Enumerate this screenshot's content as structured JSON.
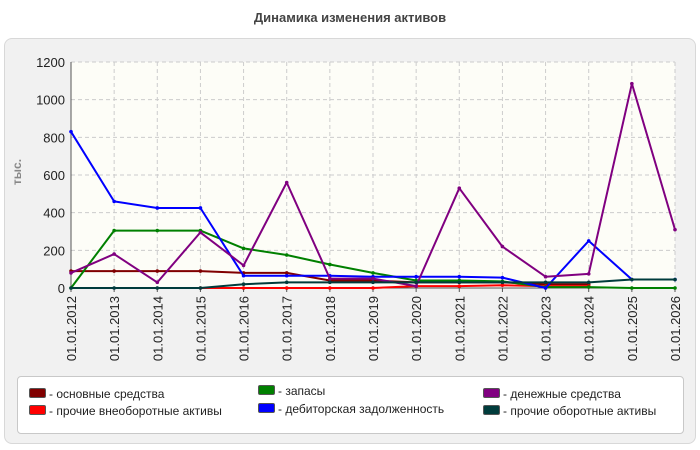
{
  "chart_data": {
    "type": "line",
    "title": "Динамика изменения активов",
    "ylabel": "тыс.",
    "xlabel": "",
    "ylim": [
      0,
      1200
    ],
    "yticks": [
      0,
      200,
      400,
      600,
      800,
      1000,
      1200
    ],
    "grid": true,
    "legend_position": "bottom",
    "categories": [
      "01.01.2012",
      "01.01.2013",
      "01.01.2014",
      "01.01.2015",
      "01.01.2016",
      "01.01.2017",
      "01.01.2018",
      "01.01.2019",
      "01.01.2020",
      "01.01.2021",
      "01.01.2022",
      "01.01.2023",
      "01.01.2024",
      "01.01.2025",
      "01.01.2026"
    ],
    "series": [
      {
        "name": "основные средства",
        "color": "#800000",
        "values": [
          90,
          90,
          90,
          90,
          80,
          80,
          40,
          40,
          30,
          30,
          30,
          20,
          20,
          null,
          null
        ]
      },
      {
        "name": "прочие внеоборотные активы",
        "color": "#ff0000",
        "values": [
          null,
          null,
          null,
          0,
          0,
          0,
          0,
          0,
          10,
          10,
          15,
          10,
          10,
          null,
          null
        ]
      },
      {
        "name": "запасы",
        "color": "#008000",
        "values": [
          0,
          305,
          305,
          305,
          210,
          175,
          125,
          80,
          40,
          40,
          35,
          5,
          5,
          0,
          0
        ]
      },
      {
        "name": "дебиторская задолженность",
        "color": "#0000ff",
        "values": [
          830,
          460,
          425,
          425,
          65,
          65,
          65,
          60,
          60,
          60,
          55,
          0,
          250,
          45,
          45
        ]
      },
      {
        "name": "денежные средства",
        "color": "#800080",
        "values": [
          80,
          180,
          30,
          295,
          120,
          560,
          50,
          50,
          10,
          530,
          220,
          60,
          75,
          1085,
          310
        ]
      },
      {
        "name": "прочие оборотные активы",
        "color": "#003c3c",
        "values": [
          0,
          0,
          0,
          0,
          20,
          30,
          30,
          30,
          30,
          30,
          30,
          30,
          30,
          45,
          45
        ]
      }
    ]
  },
  "legend": {
    "items": [
      {
        "label": "- основные средства",
        "color": "#800000"
      },
      {
        "label": "- прочие внеоборотные активы",
        "color": "#ff0000"
      },
      {
        "label": "- запасы",
        "color": "#008000"
      },
      {
        "label": "- дебиторская задолженность",
        "color": "#0000ff"
      },
      {
        "label": "- денежные средства",
        "color": "#800080"
      },
      {
        "label": "- прочие оборотные активы",
        "color": "#003c3c"
      }
    ]
  },
  "colors": {
    "plot_background": "#fdfdf7",
    "panel_background": "#f1f1f1",
    "grid": "#cccccc"
  }
}
